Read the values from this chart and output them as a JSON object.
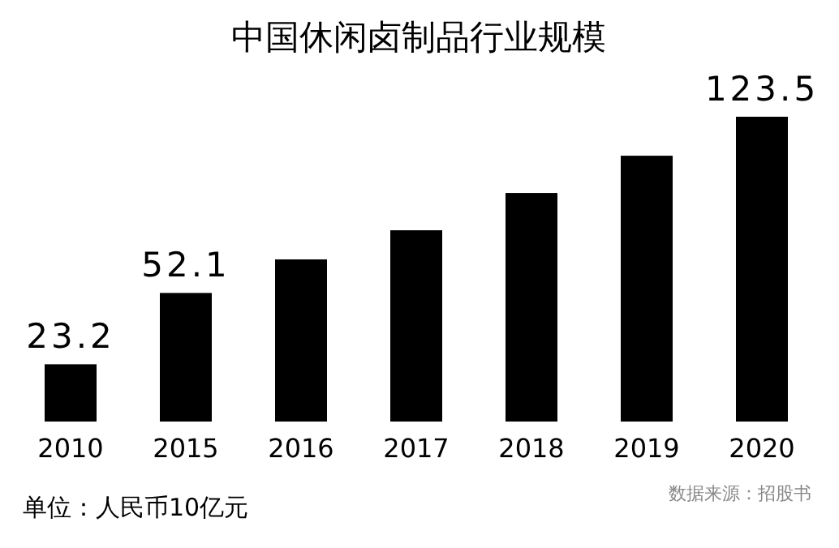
{
  "chart_data": {
    "type": "bar",
    "title": "中国休闲卤制品行业规模",
    "categories": [
      "2010",
      "2015",
      "2016",
      "2017",
      "2018",
      "2019",
      "2020"
    ],
    "values": [
      23.2,
      52.1,
      65.7,
      77.5,
      92.6,
      107.7,
      123.5
    ],
    "value_labels": [
      "23.2",
      "52.1",
      null,
      null,
      null,
      null,
      "123.5"
    ],
    "color": "#000000",
    "annotations": [
      "单位：人民币10亿元",
      "数据来源：招股书"
    ]
  }
}
